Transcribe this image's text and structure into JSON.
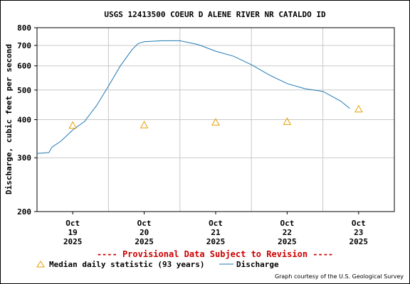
{
  "chart_data": {
    "type": "line",
    "title": "USGS 12413500 COEUR D ALENE RIVER NR CATALDO ID",
    "ylabel": "Discharge, cubic feet per second",
    "yscale": "log",
    "ylim": [
      200,
      800
    ],
    "yticks": [
      200,
      300,
      400,
      500,
      600,
      700,
      800
    ],
    "xlim": [
      "2025-10-18 12:00",
      "2025-10-23 12:00"
    ],
    "xticks": [
      {
        "x": "2025-10-19",
        "month": "Oct",
        "day": "19",
        "year": "2025"
      },
      {
        "x": "2025-10-20",
        "month": "Oct",
        "day": "20",
        "year": "2025"
      },
      {
        "x": "2025-10-21",
        "month": "Oct",
        "day": "21",
        "year": "2025"
      },
      {
        "x": "2025-10-22",
        "month": "Oct",
        "day": "22",
        "year": "2025"
      },
      {
        "x": "2025-10-23",
        "month": "Oct",
        "day": "23",
        "year": "2025"
      }
    ],
    "grid": true,
    "series": [
      {
        "name": "Discharge",
        "color": "#1f78b4",
        "x": [
          "2025-10-18 12:00",
          "2025-10-18 16:00",
          "2025-10-18 17:00",
          "2025-10-18 20:00",
          "2025-10-19 00:00",
          "2025-10-19 04:00",
          "2025-10-19 08:00",
          "2025-10-19 12:00",
          "2025-10-19 16:00",
          "2025-10-19 20:00",
          "2025-10-19 22:00",
          "2025-10-20 00:00",
          "2025-10-20 06:00",
          "2025-10-20 12:00",
          "2025-10-20 18:00",
          "2025-10-21 00:00",
          "2025-10-21 06:00",
          "2025-10-21 12:00",
          "2025-10-21 18:00",
          "2025-10-22 00:00",
          "2025-10-22 06:00",
          "2025-10-22 12:00",
          "2025-10-22 18:00",
          "2025-10-22 21:00"
        ],
        "y": [
          310,
          312,
          325,
          340,
          370,
          395,
          445,
          515,
          600,
          680,
          710,
          720,
          725,
          725,
          705,
          670,
          645,
          605,
          560,
          525,
          505,
          495,
          460,
          435
        ]
      },
      {
        "name": "Median daily statistic (93 years)",
        "color": "#e6a000",
        "marker": "triangle",
        "x": [
          "2025-10-19 00:00",
          "2025-10-20 00:00",
          "2025-10-21 00:00",
          "2025-10-22 00:00",
          "2025-10-23 00:00"
        ],
        "y": [
          383,
          384,
          392,
          394,
          433
        ]
      }
    ]
  },
  "provisional_text": "---- Provisional Data Subject to Revision ----",
  "legend": {
    "median_label": "Median daily statistic (93 years)",
    "discharge_label": "Discharge"
  },
  "credit": "Graph courtesy of the U.S. Geological Survey"
}
